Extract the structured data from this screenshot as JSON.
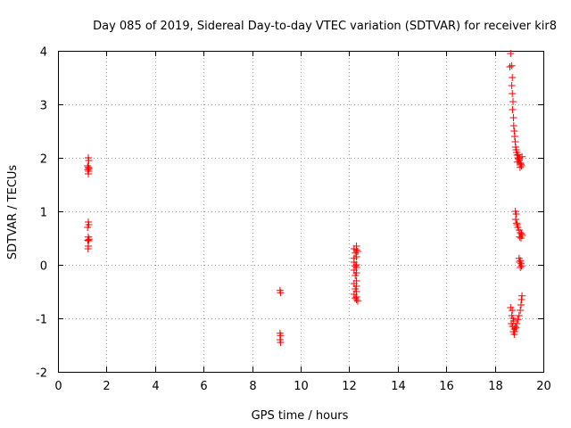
{
  "chart_data": {
    "type": "scatter",
    "title": "Day 085 of 2019, Sidereal Day-to-day VTEC variation (SDTVAR) for receiver kir8",
    "xlabel": "GPS time / hours",
    "ylabel": "SDTVAR / TECUs",
    "xlim": [
      0,
      20
    ],
    "ylim": [
      -2,
      4
    ],
    "xticks": [
      0,
      2,
      4,
      6,
      8,
      10,
      12,
      14,
      16,
      18,
      20
    ],
    "yticks": [
      -2,
      -1,
      0,
      1,
      2,
      3,
      4
    ],
    "grid": true,
    "marker": "+",
    "color": "#ff0000",
    "series": [
      {
        "name": "SDTVAR",
        "points": [
          [
            1.25,
            2.0
          ],
          [
            1.27,
            1.95
          ],
          [
            1.22,
            1.85
          ],
          [
            1.25,
            1.82
          ],
          [
            1.28,
            1.8
          ],
          [
            1.23,
            1.78
          ],
          [
            1.26,
            1.75
          ],
          [
            1.25,
            1.7
          ],
          [
            1.25,
            0.8
          ],
          [
            1.27,
            0.75
          ],
          [
            1.22,
            0.7
          ],
          [
            1.25,
            0.52
          ],
          [
            1.28,
            0.48
          ],
          [
            1.23,
            0.46
          ],
          [
            1.26,
            0.45
          ],
          [
            1.25,
            0.35
          ],
          [
            1.24,
            0.3
          ],
          [
            9.15,
            -0.48
          ],
          [
            9.17,
            -0.52
          ],
          [
            9.15,
            -1.28
          ],
          [
            9.17,
            -1.32
          ],
          [
            9.15,
            -1.4
          ],
          [
            9.17,
            -1.45
          ],
          [
            12.3,
            0.35
          ],
          [
            12.2,
            0.3
          ],
          [
            12.3,
            0.28
          ],
          [
            12.25,
            0.22
          ],
          [
            12.3,
            0.15
          ],
          [
            12.2,
            0.05
          ],
          [
            12.3,
            0.0
          ],
          [
            12.25,
            -0.02
          ],
          [
            12.3,
            -0.05
          ],
          [
            12.2,
            -0.1
          ],
          [
            12.3,
            -0.15
          ],
          [
            12.25,
            -0.2
          ],
          [
            12.3,
            -0.3
          ],
          [
            12.2,
            -0.35
          ],
          [
            12.3,
            -0.4
          ],
          [
            12.25,
            -0.45
          ],
          [
            12.3,
            -0.5
          ],
          [
            12.2,
            -0.55
          ],
          [
            12.3,
            -0.6
          ],
          [
            12.25,
            -0.62
          ],
          [
            12.3,
            -0.65
          ],
          [
            12.35,
            -0.68
          ],
          [
            12.2,
            0.12
          ],
          [
            12.35,
            0.25
          ],
          [
            18.65,
            3.95
          ],
          [
            18.7,
            3.72
          ],
          [
            18.62,
            3.7
          ],
          [
            18.72,
            3.5
          ],
          [
            18.7,
            3.35
          ],
          [
            18.72,
            3.2
          ],
          [
            18.75,
            3.05
          ],
          [
            18.73,
            2.9
          ],
          [
            18.77,
            2.75
          ],
          [
            18.78,
            2.6
          ],
          [
            18.8,
            2.5
          ],
          [
            18.82,
            2.4
          ],
          [
            18.84,
            2.3
          ],
          [
            18.86,
            2.2
          ],
          [
            18.88,
            2.15
          ],
          [
            18.9,
            2.1
          ],
          [
            18.92,
            2.05
          ],
          [
            18.95,
            2.0
          ],
          [
            18.98,
            1.98
          ],
          [
            19.0,
            1.95
          ],
          [
            19.02,
            2.0
          ],
          [
            19.05,
            1.9
          ],
          [
            19.08,
            1.88
          ],
          [
            19.1,
            1.85
          ],
          [
            18.93,
            1.92
          ],
          [
            19.12,
            2.02
          ],
          [
            19.04,
            1.82
          ],
          [
            18.96,
            2.06
          ],
          [
            18.85,
            1.0
          ],
          [
            18.88,
            0.95
          ],
          [
            18.86,
            0.85
          ],
          [
            18.9,
            0.78
          ],
          [
            18.95,
            0.7
          ],
          [
            19.0,
            0.65
          ],
          [
            19.05,
            0.6
          ],
          [
            19.1,
            0.58
          ],
          [
            19.02,
            0.52
          ],
          [
            19.08,
            0.5
          ],
          [
            19.12,
            0.55
          ],
          [
            18.92,
            0.75
          ],
          [
            19.0,
            0.12
          ],
          [
            19.05,
            0.08
          ],
          [
            19.02,
            0.05
          ],
          [
            19.08,
            0.02
          ],
          [
            19.1,
            -0.02
          ],
          [
            19.05,
            -0.05
          ],
          [
            18.65,
            -0.8
          ],
          [
            18.72,
            -0.85
          ],
          [
            18.7,
            -0.95
          ],
          [
            18.75,
            -1.0
          ],
          [
            18.68,
            -1.1
          ],
          [
            18.78,
            -1.05
          ],
          [
            18.73,
            -1.15
          ],
          [
            18.8,
            -1.2
          ],
          [
            18.76,
            -1.25
          ],
          [
            18.8,
            -1.3
          ],
          [
            18.85,
            -1.15
          ],
          [
            18.9,
            -1.1
          ],
          [
            18.95,
            -1.02
          ],
          [
            19.0,
            -0.95
          ],
          [
            19.05,
            -0.85
          ],
          [
            19.08,
            -0.75
          ],
          [
            19.1,
            -0.65
          ],
          [
            19.12,
            -0.58
          ],
          [
            18.82,
            -1.25
          ],
          [
            18.88,
            -1.18
          ]
        ]
      }
    ]
  }
}
